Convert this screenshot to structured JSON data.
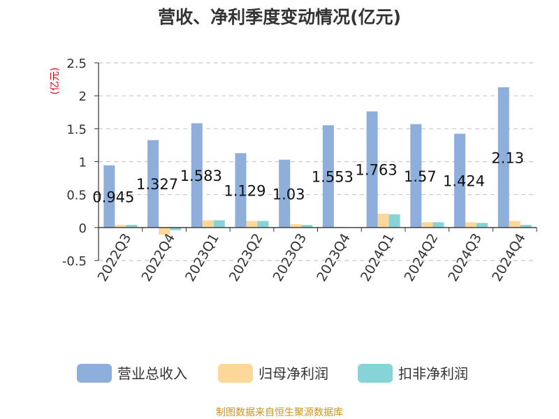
{
  "colors": {
    "revenue": "#8eaedb",
    "net_profit": "#fdd89a",
    "deducted_profit": "#86d4d8",
    "unit_label": "#e0000b",
    "source": "#c8961e",
    "grid": "#c8c8c8",
    "axis": "#333333"
  },
  "chart_data": {
    "type": "bar",
    "title": "营收、净利季度变动情况(亿元)",
    "ylabel": "(亿元)",
    "xlabel": "",
    "categories": [
      "2022Q3",
      "2022Q4",
      "2023Q1",
      "2023Q2",
      "2023Q3",
      "2023Q4",
      "2024Q1",
      "2024Q2",
      "2024Q3",
      "2024Q4"
    ],
    "series": [
      {
        "name": "营业总收入",
        "values": [
          0.945,
          1.327,
          1.583,
          1.129,
          1.03,
          1.553,
          1.763,
          1.57,
          1.424,
          2.13
        ]
      },
      {
        "name": "归母净利润",
        "values": [
          0.04,
          -0.11,
          0.11,
          0.1,
          0.05,
          0.01,
          0.21,
          0.08,
          0.08,
          0.1
        ]
      },
      {
        "name": "扣非净利润",
        "values": [
          0.04,
          -0.04,
          0.11,
          0.1,
          0.04,
          0.0,
          0.2,
          0.08,
          0.07,
          0.04
        ]
      }
    ],
    "data_labels": [
      "0.945",
      "1.327",
      "1.583",
      "1.129",
      "1.03",
      "1.553",
      "1.763",
      "1.57",
      "1.424",
      "2.13"
    ],
    "ylim": [
      -0.5,
      2.5
    ],
    "yticks": [
      "-0.5",
      "0",
      "0.5",
      "1",
      "1.5",
      "2",
      "2.5"
    ],
    "grid": true,
    "legend_position": "bottom"
  },
  "source_text": "制图数据来自恒生聚源数据库"
}
